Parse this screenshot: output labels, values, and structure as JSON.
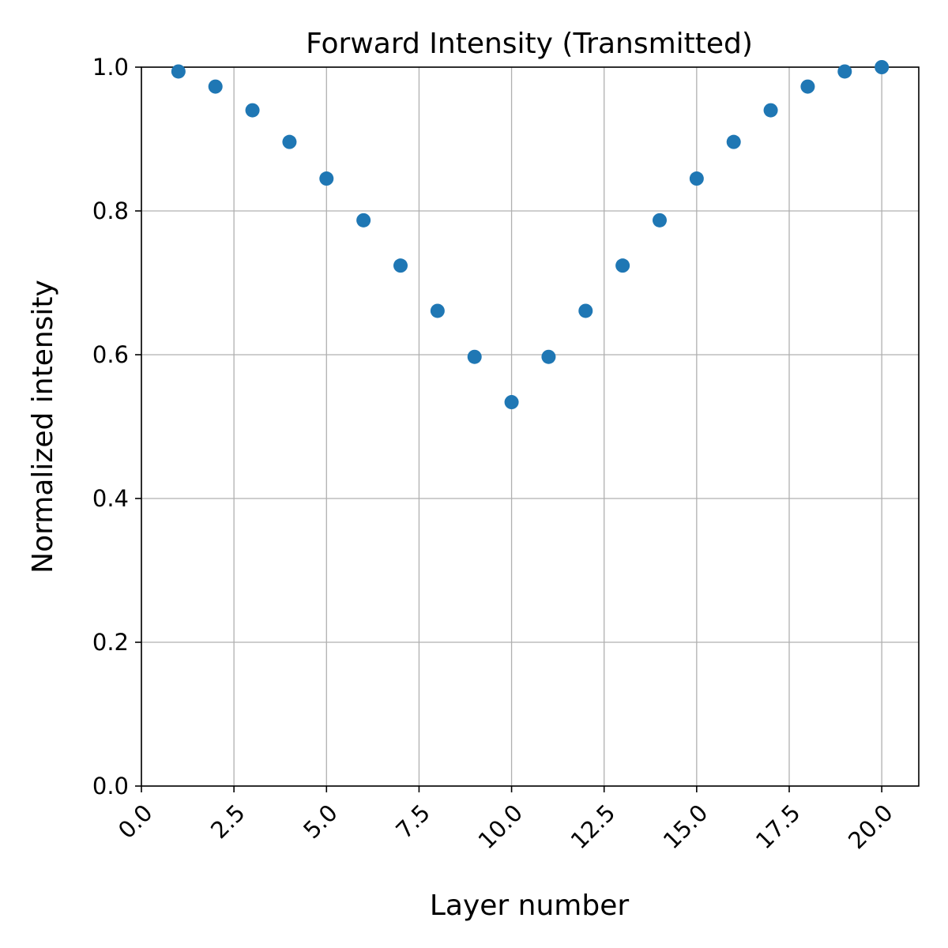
{
  "chart_data": {
    "type": "scatter",
    "title": "Forward Intensity (Transmitted)",
    "xlabel": "Layer number",
    "ylabel": "Normalized intensity",
    "xlim": [
      0,
      21
    ],
    "ylim": [
      0,
      1.0
    ],
    "xticks": [
      0.0,
      2.5,
      5.0,
      7.5,
      10.0,
      12.5,
      15.0,
      17.5,
      20.0
    ],
    "xtick_labels": [
      "0.0",
      "2.5",
      "5.0",
      "7.5",
      "10.0",
      "12.5",
      "15.0",
      "17.5",
      "20.0"
    ],
    "yticks": [
      0.0,
      0.2,
      0.4,
      0.6,
      0.8,
      1.0
    ],
    "ytick_labels": [
      "0.0",
      "0.2",
      "0.4",
      "0.6",
      "0.8",
      "1.0"
    ],
    "grid": true,
    "marker_color": "#1f77b4",
    "series": [
      {
        "x": [
          1,
          2,
          3,
          4,
          5,
          6,
          7,
          8,
          9,
          10,
          11,
          12,
          13,
          14,
          15,
          16,
          17,
          18,
          19,
          20
        ],
        "y": [
          0.994,
          0.973,
          0.94,
          0.896,
          0.845,
          0.787,
          0.724,
          0.661,
          0.597,
          0.534,
          0.597,
          0.661,
          0.724,
          0.787,
          0.845,
          0.896,
          0.94,
          0.973,
          0.994,
          1.0
        ]
      }
    ]
  }
}
